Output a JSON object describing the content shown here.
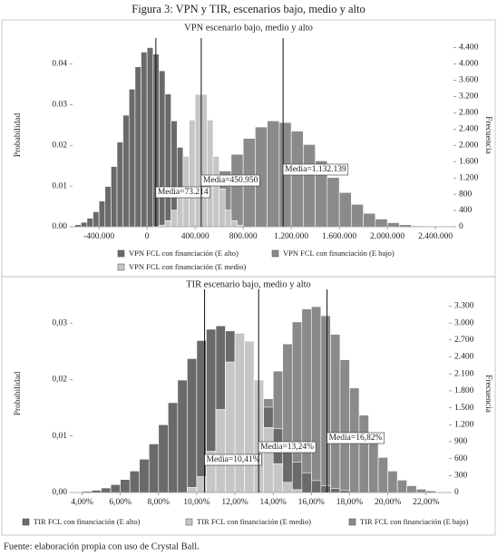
{
  "title": "Figura 3: VPN y TIR, escenarios bajo, medio y alto",
  "source": "Fuente: elaboración propia con uso de Crystal Ball.",
  "chart_data": [
    {
      "type": "histogram",
      "title": "VPN escenario bajo, medio y alto",
      "y_label": "Probabilidad",
      "y2_label": "Frecuencia",
      "xlim": [
        -620000,
        2550000
      ],
      "xticks": [
        {
          "value": -400000,
          "label": "-400.000"
        },
        0,
        {
          "value": 400000,
          "label": "400.000"
        },
        {
          "value": 800000,
          "label": "800.000"
        },
        {
          "value": 1200000,
          "label": "1.200.000"
        },
        {
          "value": 1600000,
          "label": "1.600.000"
        },
        {
          "value": 2000000,
          "label": "2.000.000"
        },
        {
          "value": 2400000,
          "label": "2.400.000"
        }
      ],
      "ylim": [
        0,
        0.045
      ],
      "yticks": [
        {
          "value": 0,
          "label": "0.00"
        },
        {
          "value": 0.01,
          "label": "0.01"
        },
        {
          "value": 0.02,
          "label": "0.02"
        },
        {
          "value": 0.03,
          "label": "0.03"
        },
        {
          "value": 0.04,
          "label": "0.04"
        }
      ],
      "y2lim": [
        0,
        4500
      ],
      "y2ticks": [
        0,
        400,
        800,
        {
          "value": 1200,
          "label": "1.200"
        },
        {
          "value": 1600,
          "label": "1.600"
        },
        {
          "value": 2000,
          "label": "2.000"
        },
        {
          "value": 2400,
          "label": "2.400"
        },
        {
          "value": 2800,
          "label": "2.800"
        },
        {
          "value": 3200,
          "label": "3.200"
        },
        {
          "value": 3600,
          "label": "3.600"
        },
        {
          "value": 4000,
          "label": "4.000"
        },
        {
          "value": 4400,
          "label": "4.400"
        }
      ],
      "series": [
        {
          "name": "VPN FCL con financiación (E bajo)",
          "color": "#8a8a8a",
          "bins": [
            -200000,
            -100000,
            0,
            100000,
            200000,
            300000,
            400000,
            500000,
            600000,
            700000,
            800000,
            900000,
            1000000,
            1100000,
            1200000,
            1300000,
            1400000,
            1500000,
            1600000,
            1700000,
            1800000,
            1900000,
            2000000,
            2100000,
            2200000,
            2300000,
            2400000
          ],
          "values": [
            0.0001,
            0.0003,
            0.0007,
            0.0013,
            0.0024,
            0.0041,
            0.0066,
            0.0098,
            0.0137,
            0.0178,
            0.0217,
            0.0245,
            0.026,
            0.0256,
            0.0235,
            0.0202,
            0.0162,
            0.0121,
            0.0084,
            0.0055,
            0.0033,
            0.0019,
            0.001,
            0.0005,
            0.0002,
            0.0001
          ]
        },
        {
          "name": "VPN FCL con financiación (E alto)",
          "color": "#6a6a6a",
          "bins": [
            -600000,
            -550000,
            -500000,
            -450000,
            -400000,
            -350000,
            -300000,
            -250000,
            -200000,
            -150000,
            -100000,
            -50000,
            0,
            50000,
            100000,
            150000,
            200000,
            250000,
            300000,
            350000,
            400000,
            450000,
            500000,
            550000,
            600000,
            650000
          ],
          "values": [
            0.0005,
            0.0011,
            0.0021,
            0.0037,
            0.0063,
            0.0099,
            0.0148,
            0.0208,
            0.0274,
            0.0338,
            0.0393,
            0.0429,
            0.044,
            0.0424,
            0.0383,
            0.0326,
            0.026,
            0.0195,
            0.0137,
            0.0091,
            0.0057,
            0.0033,
            0.0018,
            0.0009,
            0.0005
          ]
        },
        {
          "name": "VPN FCL con financiación (E medio)",
          "color": "#c6c6c6",
          "bins": [
            50000,
            100000,
            150000,
            200000,
            250000,
            300000,
            350000,
            400000,
            450000,
            500000,
            550000,
            600000,
            650000,
            700000,
            750000,
            800000
          ],
          "values": [
            0.0001,
            0.0004,
            0.0015,
            0.0041,
            0.0093,
            0.0173,
            0.0262,
            0.0325,
            0.0325,
            0.0262,
            0.0173,
            0.0093,
            0.0041,
            0.0015,
            0.0004
          ]
        }
      ],
      "annotations": [
        {
          "value": 73214,
          "label": "Media=73.214"
        },
        {
          "value": 450950,
          "label": "Media=450.950"
        },
        {
          "value": 1132139,
          "label": "Media=1.132.139"
        }
      ]
    },
    {
      "type": "histogram",
      "title": "TIR escenario bajo, medio y alto",
      "y_label": "Probabilidad",
      "y2_label": "Frecuencia",
      "xlim": [
        3.5,
        23.2
      ],
      "xticks": [
        {
          "value": 4,
          "label": "4,00%"
        },
        {
          "value": 6,
          "label": "6,00%"
        },
        {
          "value": 8,
          "label": "8,00%"
        },
        {
          "value": 10,
          "label": "10,00%"
        },
        {
          "value": 12,
          "label": "12,00%"
        },
        {
          "value": 14,
          "label": "14,00%"
        },
        {
          "value": 16,
          "label": "16,00%"
        },
        {
          "value": 18,
          "label": "18,00%"
        },
        {
          "value": 20,
          "label": "20,00%"
        },
        {
          "value": 22,
          "label": "22,00%"
        }
      ],
      "ylim": [
        0,
        0.035
      ],
      "yticks": [
        {
          "value": 0,
          "label": "0,00"
        },
        {
          "value": 0.01,
          "label": "0,01"
        },
        {
          "value": 0.02,
          "label": "0,02"
        },
        {
          "value": 0.03,
          "label": "0,03"
        }
      ],
      "y2lim": [
        0,
        3500
      ],
      "y2ticks": [
        0,
        300,
        600,
        900,
        {
          "value": 1200,
          "label": "1.200"
        },
        {
          "value": 1500,
          "label": "1.500"
        },
        {
          "value": 1800,
          "label": "1.800"
        },
        {
          "value": 2100,
          "label": "2.100"
        },
        {
          "value": 2400,
          "label": "2.400"
        },
        {
          "value": 2700,
          "label": "2.700"
        },
        {
          "value": 3000,
          "label": "3.000"
        },
        {
          "value": 3300,
          "label": "3.300"
        }
      ],
      "series": [
        {
          "name": "TIR FCL con financiación (E bajo)",
          "color": "#8a8a8a",
          "bins": [
            9,
            9.5,
            10,
            10.5,
            11,
            11.5,
            12,
            12.5,
            13,
            13.5,
            14,
            14.5,
            15,
            15.5,
            16,
            16.5,
            17,
            17.5,
            18,
            18.5,
            19,
            19.5,
            20,
            20.5,
            21,
            21.5,
            22,
            22.5,
            23
          ],
          "values": [
            0.0001,
            0.0002,
            0.0005,
            0.0009,
            0.0017,
            0.0031,
            0.0052,
            0.0081,
            0.0119,
            0.0166,
            0.0215,
            0.0263,
            0.0302,
            0.0325,
            0.0329,
            0.0313,
            0.028,
            0.0235,
            0.0185,
            0.0137,
            0.0095,
            0.0062,
            0.0038,
            0.0022,
            0.0012,
            0.0006,
            0.0003,
            0.0001
          ]
        },
        {
          "name": "TIR FCL con financiación (E alto)",
          "color": "#6a6a6a",
          "bins": [
            4,
            4.5,
            5,
            5.5,
            6,
            6.5,
            7,
            7.5,
            8,
            8.5,
            9,
            9.5,
            10,
            10.5,
            11,
            11.5,
            12,
            12.5,
            13,
            13.5,
            14,
            14.5,
            15,
            15.5,
            16,
            16.5,
            17,
            17.5,
            18
          ],
          "values": [
            0.0002,
            0.0004,
            0.0008,
            0.0014,
            0.0023,
            0.0038,
            0.0059,
            0.0086,
            0.012,
            0.0159,
            0.0199,
            0.0237,
            0.0269,
            0.0289,
            0.0295,
            0.0286,
            0.0263,
            0.023,
            0.0191,
            0.0151,
            0.0113,
            0.008,
            0.0054,
            0.0035,
            0.0021,
            0.0012,
            0.0007,
            0.0004
          ]
        },
        {
          "name": "TIR FCL con financiación (E medio)",
          "color": "#c6c6c6",
          "bins": [
            9.5,
            10,
            10.5,
            11,
            11.5,
            12,
            12.5,
            13,
            13.5,
            14,
            14.5,
            15,
            15.5
          ],
          "values": [
            0.0009,
            0.0028,
            0.0073,
            0.0147,
            0.0231,
            0.0282,
            0.0268,
            0.0199,
            0.0115,
            0.0051,
            0.0018,
            0.0005
          ]
        }
      ],
      "annotations": [
        {
          "value": 10.41,
          "label": "Media=10,41%"
        },
        {
          "value": 13.24,
          "label": "Media=13,24%"
        },
        {
          "value": 16.82,
          "label": "Media=16,82%"
        }
      ]
    }
  ]
}
